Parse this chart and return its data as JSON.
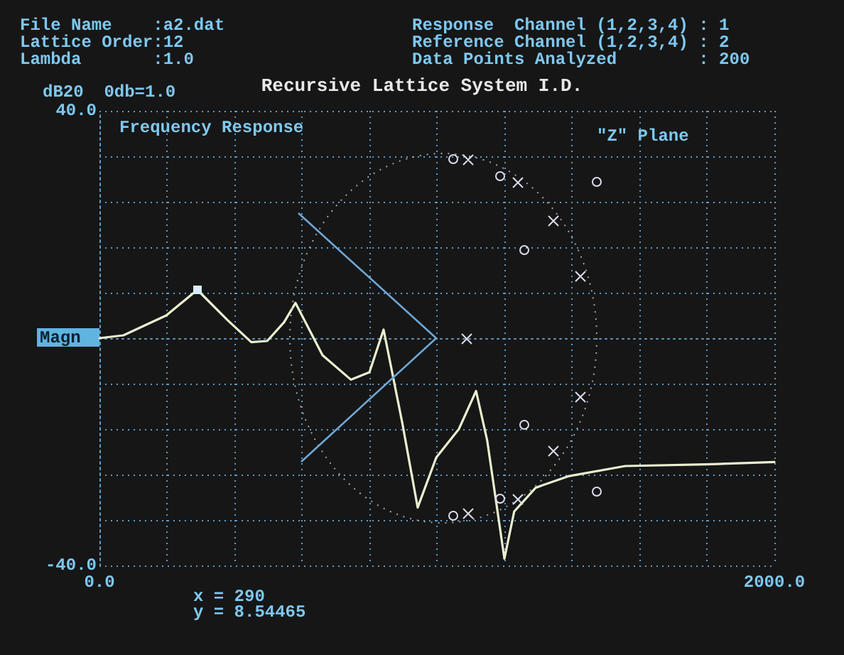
{
  "chart_data": {
    "type": "line",
    "title": "Recursive Lattice System I.D.",
    "subtitle": "Frequency Response",
    "ylabel": "Magn",
    "annotations": [
      "File Name    :a2.dat",
      "Lattice Order:12",
      "Lambda       :1.0",
      "Response  Channel (1,2,3,4) : 1",
      "Reference Channel (1,2,3,4) : 2",
      "Data Points Analyzed        : 200",
      "dB20  0db=1.0",
      "\"Z\" Plane",
      "x = 290",
      "y = 8.54465"
    ],
    "x": [
      0,
      71,
      198,
      290,
      379,
      450,
      497,
      547,
      581,
      661,
      745,
      800,
      842,
      897,
      943,
      998,
      1065,
      1116,
      1149,
      1200,
      1229,
      1293,
      1389,
      1558,
      1798,
      2000
    ],
    "series": [
      {
        "color": "#e8f0d0",
        "values": [
          0,
          0.5,
          4,
          8.5,
          3.2,
          -0.7,
          -0.5,
          2.8,
          6.2,
          -3,
          -7.3,
          -6,
          1.5,
          -14.8,
          -29.8,
          -21,
          -16,
          -9.3,
          -18,
          -38.8,
          -30.5,
          -26.3,
          -24.3,
          -22.5,
          -22.2,
          -21.8
        ]
      }
    ],
    "xlim": [
      0,
      2000
    ],
    "ylim": [
      -40,
      40
    ],
    "xticks": [
      {
        "value": 0,
        "label": "0.0"
      },
      {
        "value": 200,
        "label": null
      },
      {
        "value": 400,
        "label": null
      },
      {
        "value": 600,
        "label": null
      },
      {
        "value": 800,
        "label": null
      },
      {
        "value": 1000,
        "label": null
      },
      {
        "value": 1200,
        "label": null
      },
      {
        "value": 1400,
        "label": null
      },
      {
        "value": 1600,
        "label": null
      },
      {
        "value": 1800,
        "label": null
      },
      {
        "value": 2000,
        "label": "2000.0"
      }
    ],
    "yticks": [
      {
        "value": -40,
        "label": "-40.0"
      },
      {
        "value": -32,
        "label": null
      },
      {
        "value": -24,
        "label": null
      },
      {
        "value": -16,
        "label": null
      },
      {
        "value": -8,
        "label": null
      },
      {
        "value": 0,
        "label": null
      },
      {
        "value": 8,
        "label": null
      },
      {
        "value": 16,
        "label": null
      },
      {
        "value": 24,
        "label": null
      },
      {
        "value": 32,
        "label": null
      },
      {
        "value": 40,
        "label": "40.0"
      }
    ],
    "grid": true,
    "marker": "none",
    "line_style": "solid"
  }
}
